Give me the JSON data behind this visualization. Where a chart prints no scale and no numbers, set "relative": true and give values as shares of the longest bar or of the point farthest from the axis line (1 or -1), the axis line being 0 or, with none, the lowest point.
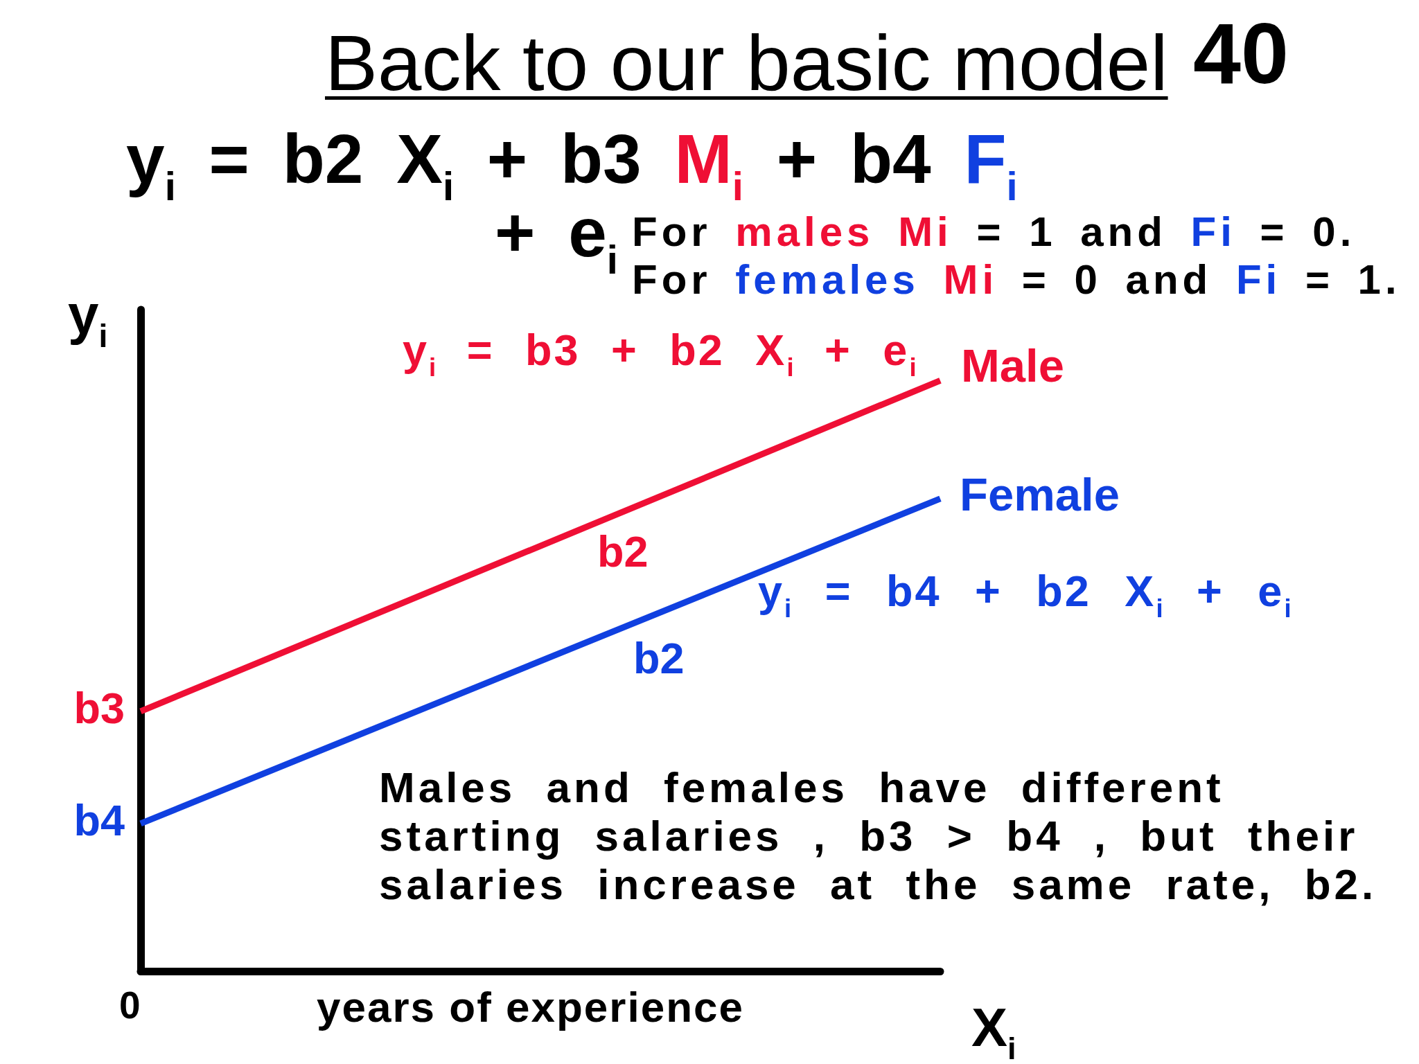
{
  "chart_data": {
    "type": "line",
    "title": "Back to our basic model",
    "xlabel": "years of experience",
    "ylabel": "y$_{i}$",
    "categories": [
      null,
      null
    ],
    "relative": true,
    "series": [
      {
        "name": "Male",
        "color": "#ef0f35",
        "values": [
          0.44,
          1
        ]
      },
      {
        "name": "Female",
        "color": "#1040e0",
        "values": [
          0.25,
          0.8
        ]
      }
    ],
    "legend": false,
    "grid": false,
    "marker": "none",
    "line_style": "solid",
    "annotations": [
      "40",
      "y$_{i}$ = b2 X$_{i}$ + b3",
      "M$_{i}$",
      "+ b4",
      "F$_{i}$",
      "+ e$_{i}$",
      "For",
      "males",
      "Mi",
      "= 1 and",
      "Fi",
      "= 0.",
      "For",
      "females",
      "Mi",
      "= 0 and",
      "Fi",
      "= 1.",
      "y$_{i}$ = b3 + b2 X$_{i}$ + e$_{i}$",
      "b2",
      "y$_{i}$ = b4 + b2 X$_{i}$ + e$_{i}$",
      "b2",
      "b3",
      "b4",
      "Males and females have different starting salaries , b3 > b4 , but their salaries increase at the same rate, b2.",
      "X$_{i}$",
      "0"
    ]
  }
}
